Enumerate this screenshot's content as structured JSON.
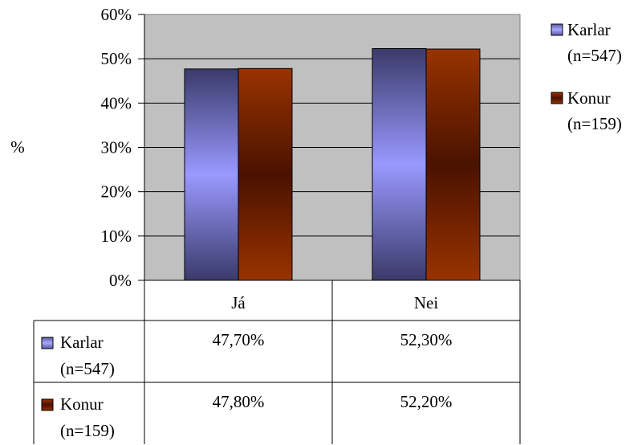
{
  "chart_data": {
    "type": "bar",
    "title": "",
    "xlabel": "",
    "ylabel": "%",
    "categories": [
      "Já",
      "Nei"
    ],
    "ylim": [
      0,
      60
    ],
    "yticks": [
      "0%",
      "10%",
      "20%",
      "30%",
      "40%",
      "50%",
      "60%"
    ],
    "grid": true,
    "legend_position": "right",
    "series": [
      {
        "name_line1": "Karlar",
        "name_line2": "(n=547)",
        "values": [
          47.7,
          52.3
        ],
        "labels": [
          "47,70%",
          "52,30%"
        ],
        "color": "#9999ff"
      },
      {
        "name_line1": "Konur",
        "name_line2": "(n=159)",
        "values": [
          47.8,
          52.2
        ],
        "labels": [
          "47,80%",
          "52,20%"
        ],
        "color": "#993300"
      }
    ],
    "data_table": true
  }
}
